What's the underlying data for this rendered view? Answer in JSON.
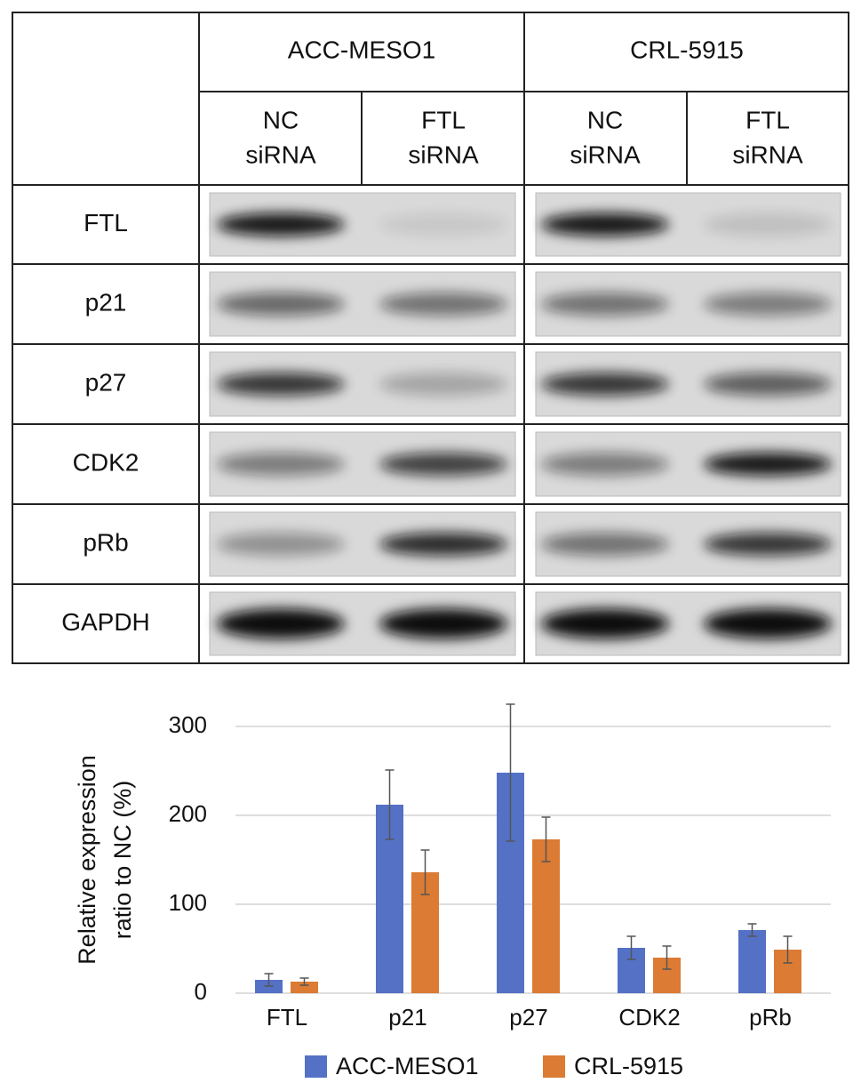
{
  "blot_table": {
    "cell_lines": [
      "ACC-MESO1",
      "CRL-5915"
    ],
    "conditions": [
      [
        [
          "NC",
          "siRNA"
        ],
        [
          "FTL",
          "siRNA"
        ]
      ],
      [
        [
          "NC",
          "siRNA"
        ],
        [
          "FTL",
          "siRNA"
        ]
      ]
    ],
    "proteins": [
      "FTL",
      "p21",
      "p27",
      "CDK2",
      "pRb",
      "GAPDH"
    ]
  },
  "chart_data": {
    "type": "bar",
    "y_label": [
      "Relative expression",
      "ratio to NC (%)"
    ],
    "categories": [
      "FTL",
      "p21",
      "p27",
      "CDK2",
      "pRb"
    ],
    "series": [
      {
        "name": "ACC-MESO1",
        "color": "#5471c6",
        "values": [
          15,
          212,
          248,
          51,
          71
        ],
        "errors": [
          7,
          39,
          77,
          13,
          7
        ]
      },
      {
        "name": "CRL-5915",
        "color": "#dc7b33",
        "values": [
          13,
          136,
          173,
          40,
          49
        ],
        "errors": [
          4,
          25,
          25,
          13,
          15
        ]
      }
    ],
    "ylim": [
      0,
      300
    ],
    "yticks": [
      0,
      100,
      200,
      300
    ],
    "grid": true,
    "legend": "bottom"
  }
}
